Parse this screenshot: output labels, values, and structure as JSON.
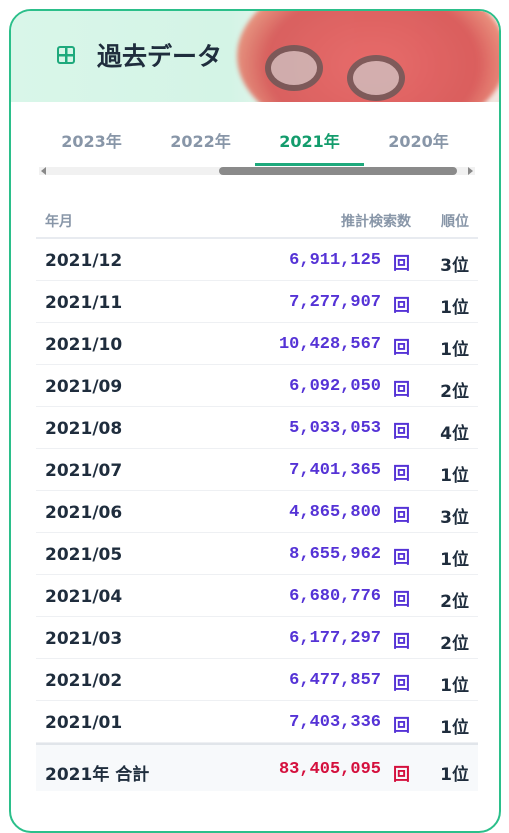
{
  "header": {
    "title": "過去データ"
  },
  "tabs": [
    "2023年",
    "2022年",
    "2021年",
    "2020年"
  ],
  "table": {
    "columns": [
      "年月",
      "推計検索数",
      "順位"
    ],
    "unit": "回",
    "rows": [
      [
        "2021/12",
        "6,911,125",
        "3位"
      ],
      [
        "2021/11",
        "7,277,907",
        "1位"
      ],
      [
        "2021/10",
        "10,428,567",
        "1位"
      ],
      [
        "2021/09",
        "6,092,050",
        "2位"
      ],
      [
        "2021/08",
        "5,033,053",
        "4位"
      ],
      [
        "2021/07",
        "7,401,365",
        "1位"
      ],
      [
        "2021/06",
        "4,865,800",
        "3位"
      ],
      [
        "2021/05",
        "8,655,962",
        "1位"
      ],
      [
        "2021/04",
        "6,680,776",
        "2位"
      ],
      [
        "2021/03",
        "6,177,297",
        "2位"
      ],
      [
        "2021/02",
        "6,477,857",
        "1位"
      ],
      [
        "2021/01",
        "7,403,336",
        "1位"
      ]
    ],
    "total": [
      "2021年 合計",
      "83,405,095",
      "1位"
    ]
  }
}
